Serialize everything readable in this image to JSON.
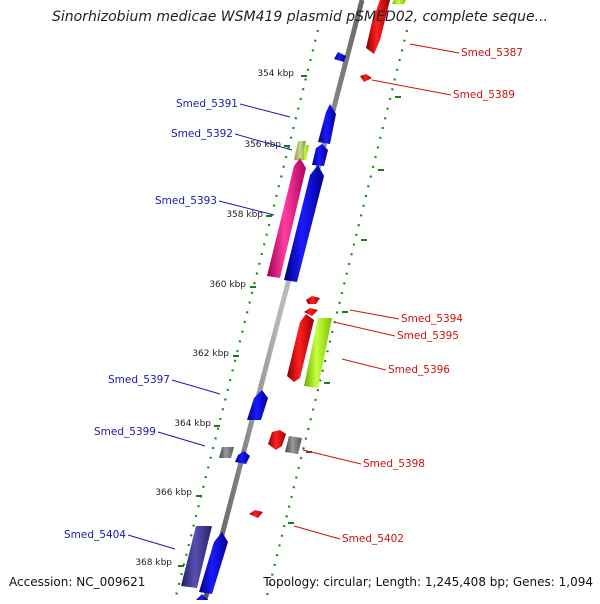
{
  "title": "Sinorhizobium medicae WSM419 plasmid pSMED02, complete seque...",
  "accession": "Accession: NC_009621",
  "summary": "Topology: circular; Length: 1,245,408 bp; Genes: 1,094",
  "colors": {
    "forward_label": "#1a1aaa",
    "reverse_label": "#cc1111",
    "forward_gene": "#0a0aee",
    "reverse_gene": "#ee0a0a",
    "tick": "#1a7a1a",
    "backbone": "#888888"
  },
  "ticks": [
    {
      "label": "354 kbp"
    },
    {
      "label": "356 kbp"
    },
    {
      "label": "358 kbp"
    },
    {
      "label": "360 kbp"
    },
    {
      "label": "362 kbp"
    },
    {
      "label": "364 kbp"
    },
    {
      "label": "366 kbp"
    },
    {
      "label": "368 kbp"
    }
  ],
  "gene_labels": [
    {
      "text": "Smed_5387",
      "strand": "reverse"
    },
    {
      "text": "Smed_5389",
      "strand": "reverse"
    },
    {
      "text": "Smed_5391",
      "strand": "forward"
    },
    {
      "text": "Smed_5392",
      "strand": "forward"
    },
    {
      "text": "Smed_5393",
      "strand": "forward"
    },
    {
      "text": "Smed_5394",
      "strand": "reverse"
    },
    {
      "text": "Smed_5395",
      "strand": "reverse"
    },
    {
      "text": "Smed_5396",
      "strand": "reverse"
    },
    {
      "text": "Smed_5397",
      "strand": "forward"
    },
    {
      "text": "Smed_5399",
      "strand": "forward"
    },
    {
      "text": "Smed_5398",
      "strand": "reverse"
    },
    {
      "text": "Smed_5402",
      "strand": "reverse"
    },
    {
      "text": "Smed_5404",
      "strand": "forward"
    }
  ]
}
